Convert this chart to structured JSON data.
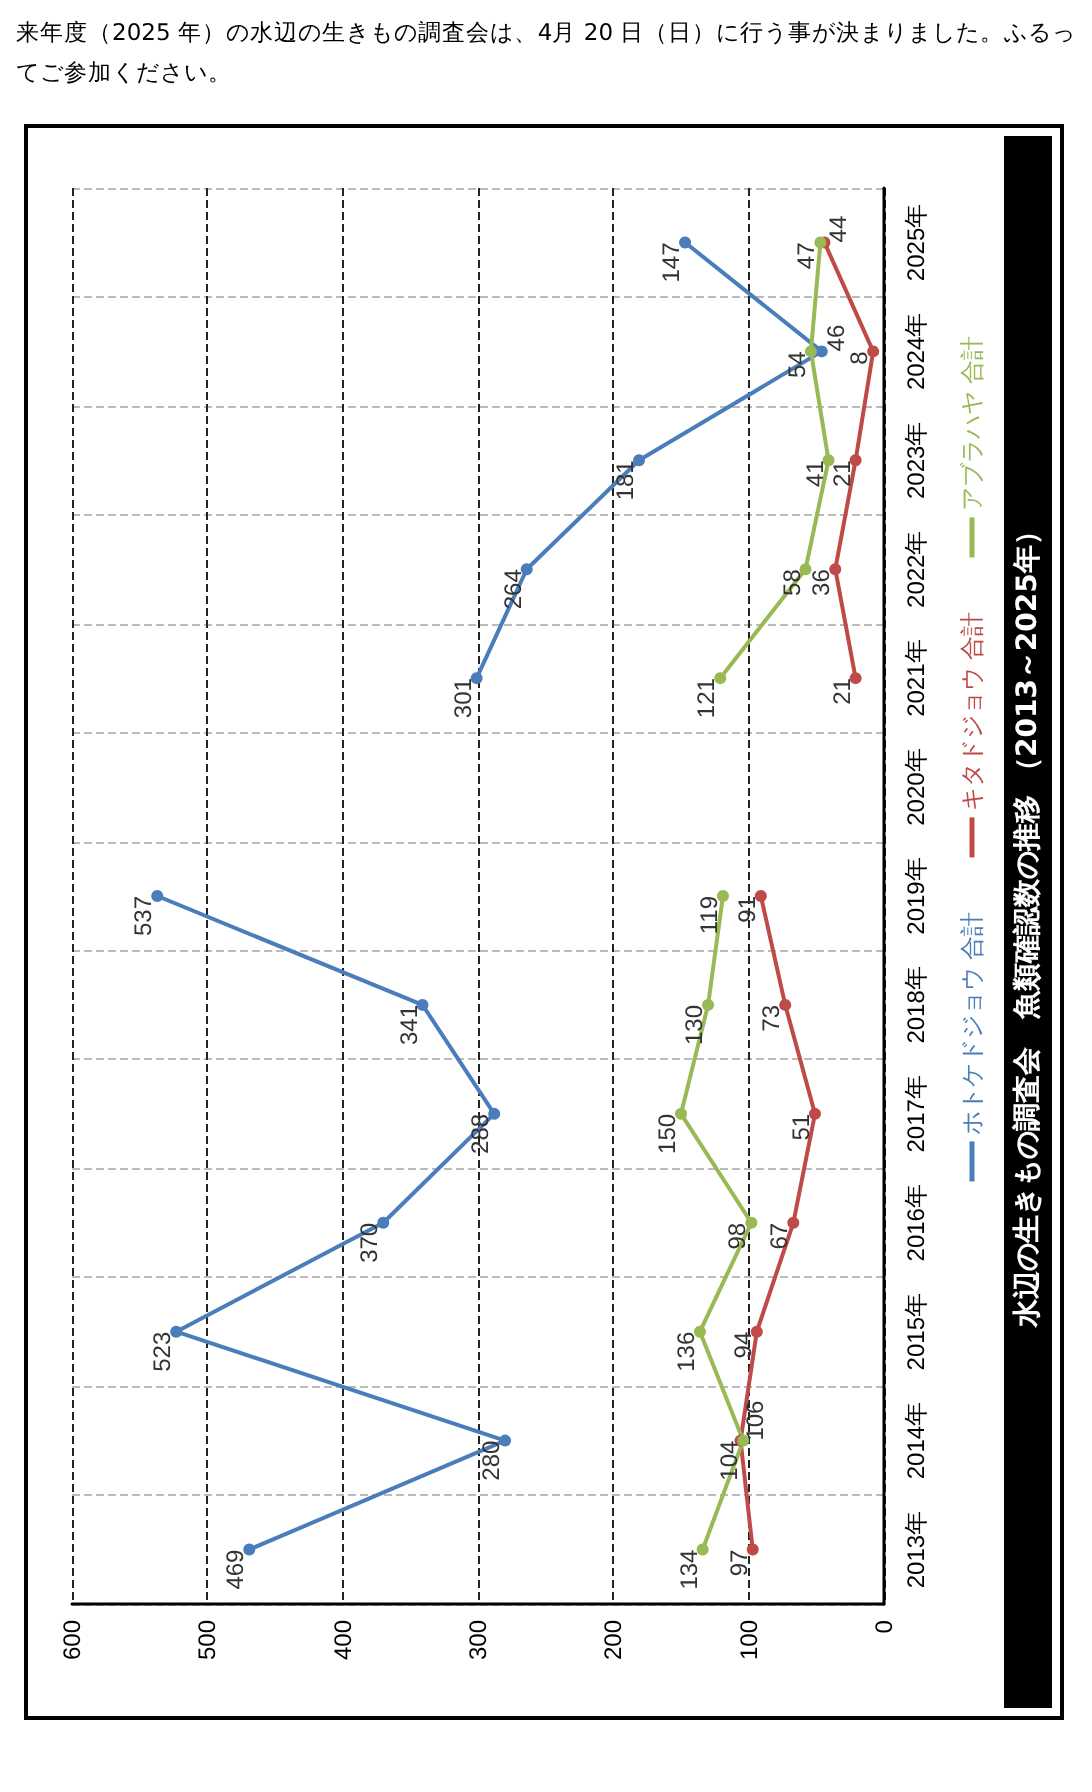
{
  "chart_data": {
    "type": "line",
    "orientation": "horizontal",
    "title": "水辺の生きもの調査会　魚類確認数の推移 （2013～2025年）",
    "annotations": [
      "来年度（2025 年）の水辺の生きもの調査会は、4月 20 日（日）に行う事が決まりました。ふるってご参加ください。"
    ],
    "categories": [
      "2025年",
      "2024年",
      "2023年",
      "2022年",
      "2021年",
      "2020年",
      "2019年",
      "2018年",
      "2017年",
      "2016年",
      "2015年",
      "2014年",
      "2013年"
    ],
    "series": [
      {
        "name": "ホトケドジョウ 合計",
        "color": "#4a7ebb",
        "values": [
          147,
          46,
          181,
          264,
          301,
          null,
          537,
          341,
          288,
          370,
          523,
          280,
          469
        ]
      },
      {
        "name": "キタドジョウ 合計",
        "color": "#be4b48",
        "values": [
          44,
          8,
          21,
          36,
          21,
          null,
          91,
          73,
          51,
          67,
          94,
          106,
          97
        ]
      },
      {
        "name": "アブラハヤ 合計",
        "color": "#98b954",
        "values": [
          47,
          54,
          41,
          58,
          121,
          null,
          119,
          130,
          150,
          98,
          136,
          104,
          134
        ]
      }
    ],
    "xlim": [
      600,
      0
    ],
    "xticks": [
      600,
      500,
      400,
      300,
      200,
      100,
      0
    ],
    "grid": true,
    "legend": "right",
    "marker": "circle",
    "line_style": "solid",
    "data_labels": true
  }
}
